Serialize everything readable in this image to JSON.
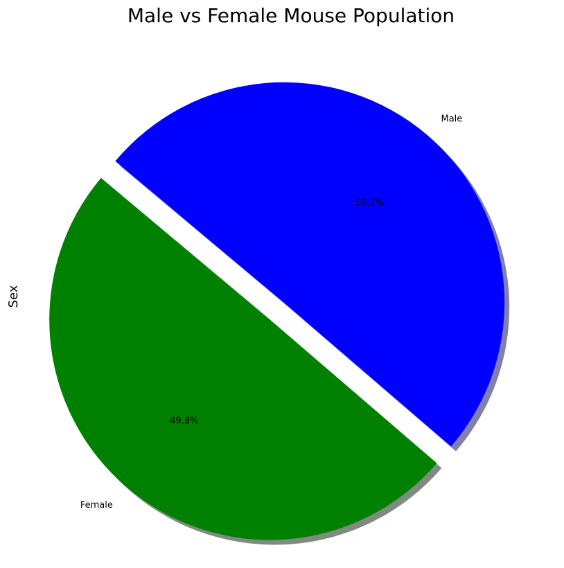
{
  "chart_data": {
    "type": "pie",
    "title": "Male vs Female Mouse Population",
    "ylabel": "Sex",
    "xlabel": "",
    "start_angle_deg": 140,
    "shadow": true,
    "slices": [
      {
        "label": "Female",
        "percent_label": "49.8%",
        "value": 49.8,
        "color": "#008000",
        "shadow_color": "#808b80",
        "explode": 0.1
      },
      {
        "label": "Male",
        "percent_label": "50.2%",
        "value": 50.2,
        "color": "#0000ff",
        "shadow_color": "#8080a8",
        "explode": 0
      }
    ]
  }
}
